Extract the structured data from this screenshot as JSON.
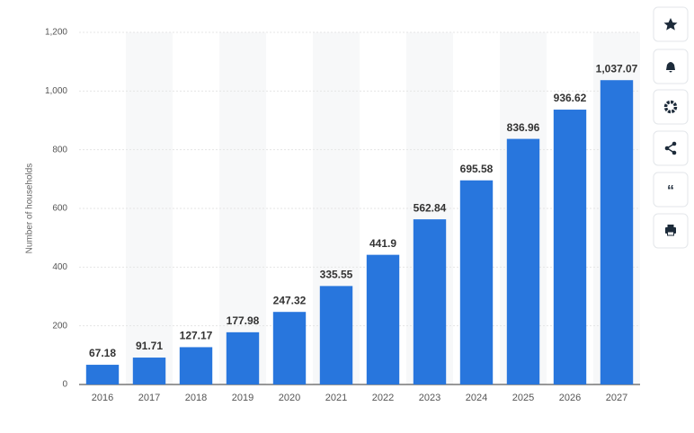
{
  "chart_data": {
    "type": "bar",
    "y_label": "Number of households",
    "categories": [
      "2016",
      "2017",
      "2018",
      "2019",
      "2020",
      "2021",
      "2022",
      "2023",
      "2024",
      "2025",
      "2026",
      "2027"
    ],
    "values": [
      67.18,
      91.71,
      127.17,
      177.98,
      247.32,
      335.55,
      441.9,
      562.84,
      695.58,
      836.96,
      936.62,
      1037.07
    ],
    "value_labels": [
      "67.18",
      "91.71",
      "127.17",
      "177.98",
      "247.32",
      "335.55",
      "441.9",
      "562.84",
      "695.58",
      "836.96",
      "936.62",
      "1,037.07"
    ],
    "color": "#2876dd",
    "ylim": [
      0,
      1200
    ],
    "yticks": [
      0,
      200,
      400,
      600,
      800,
      {
        "value": 1000,
        "label": "1,000"
      },
      {
        "value": 1200,
        "label": "1,200"
      }
    ],
    "grid": true
  }
}
